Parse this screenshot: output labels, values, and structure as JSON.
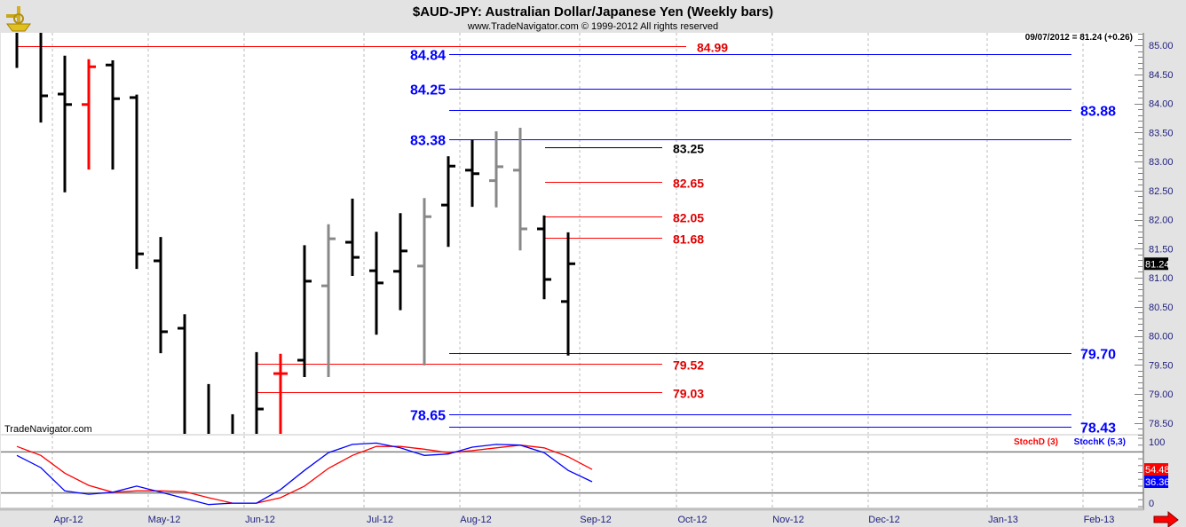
{
  "header": {
    "title": "$AUD-JPY:  Australian Dollar/Japanese Yen  (Weekly bars)",
    "copyright": "www.TradeNavigator.com © 1999-2012 All rights reserved",
    "logo": "sextant-logo",
    "watermark": "TradeNavigator.com",
    "last_quote": "09/07/2012 = 81.24 (+0.26)"
  },
  "colors": {
    "up_bar": "#000000",
    "down_bar": "#888888",
    "red_bar": "#ff0000",
    "resistance": "#ff0000",
    "support": "#0000ff",
    "stoch_d": "#ff0000",
    "stoch_k": "#0000ff"
  },
  "chart_data": [
    {
      "type": "ohlc",
      "title": "$AUD-JPY:  Australian Dollar/Japanese Yen  (Weekly bars)",
      "ylim": [
        78.3,
        85.2
      ],
      "y_ticks": [
        "85.00",
        "84.50",
        "84.00",
        "83.50",
        "83.00",
        "82.50",
        "82.00",
        "81.50",
        "81.00",
        "80.50",
        "80.00",
        "79.50",
        "79.00",
        "78.50"
      ],
      "last_price_label": "81.24",
      "bars": [
        {
          "o": 85.2,
          "h": 85.3,
          "l": 84.61,
          "c": 84.9,
          "color": "black",
          "ticks": false
        },
        {
          "o": 85.2,
          "h": 85.3,
          "l": 83.67,
          "c": 84.13,
          "color": "black",
          "open_hidden": true
        },
        {
          "o": 84.16,
          "h": 84.82,
          "l": 82.47,
          "c": 83.98,
          "color": "black"
        },
        {
          "o": 83.98,
          "h": 84.76,
          "l": 82.86,
          "c": 84.63,
          "color": "red"
        },
        {
          "o": 84.66,
          "h": 84.74,
          "l": 82.86,
          "c": 84.08,
          "color": "black"
        },
        {
          "o": 84.1,
          "h": 84.15,
          "l": 81.15,
          "c": 81.41,
          "color": "black"
        },
        {
          "o": 81.29,
          "h": 81.7,
          "l": 79.7,
          "c": 80.07,
          "color": "black"
        },
        {
          "o": 80.13,
          "h": 80.37,
          "l": 78.0,
          "c": 78.0,
          "color": "black",
          "close_hidden": true
        },
        {
          "o": 78.0,
          "h": 79.17,
          "l": 78.0,
          "c": 78.0,
          "color": "black",
          "ticks": false
        },
        {
          "o": 78.0,
          "h": 78.65,
          "l": 78.0,
          "c": 78.0,
          "color": "black",
          "ticks": false
        },
        {
          "o": 78.0,
          "h": 79.72,
          "l": 78.0,
          "c": 78.74,
          "color": "black",
          "open_hidden": true
        },
        {
          "o": 79.35,
          "h": 79.69,
          "l": 78.0,
          "c": 79.35,
          "color": "red"
        },
        {
          "o": 79.58,
          "h": 81.56,
          "l": 79.29,
          "c": 80.94,
          "color": "black"
        },
        {
          "o": 80.86,
          "h": 81.92,
          "l": 79.29,
          "c": 81.67,
          "color": "grey"
        },
        {
          "o": 81.61,
          "h": 82.36,
          "l": 81.03,
          "c": 81.35,
          "color": "black"
        },
        {
          "o": 81.12,
          "h": 81.79,
          "l": 80.02,
          "c": 80.91,
          "color": "black"
        },
        {
          "o": 81.11,
          "h": 82.11,
          "l": 80.44,
          "c": 81.46,
          "color": "black"
        },
        {
          "o": 81.2,
          "h": 82.37,
          "l": 79.49,
          "c": 82.05,
          "color": "grey"
        },
        {
          "o": 82.25,
          "h": 83.09,
          "l": 81.53,
          "c": 82.92,
          "color": "black"
        },
        {
          "o": 82.85,
          "h": 83.37,
          "l": 82.22,
          "c": 82.79,
          "color": "black"
        },
        {
          "o": 82.67,
          "h": 83.52,
          "l": 82.21,
          "c": 82.91,
          "color": "grey"
        },
        {
          "o": 82.85,
          "h": 83.58,
          "l": 81.47,
          "c": 81.84,
          "color": "grey"
        },
        {
          "o": 81.84,
          "h": 82.07,
          "l": 80.63,
          "c": 80.97,
          "color": "black"
        },
        {
          "o": 80.59,
          "h": 81.78,
          "l": 79.66,
          "c": 81.24,
          "color": "black"
        }
      ],
      "levels": [
        {
          "value": "84.99",
          "kind": "resistance",
          "start_bar": 0,
          "label_side": "mid"
        },
        {
          "value": "84.84",
          "kind": "support",
          "start_bar": 18,
          "label_side": "left"
        },
        {
          "value": "84.25",
          "kind": "support",
          "start_bar": 18,
          "label_side": "left"
        },
        {
          "value": "83.88",
          "kind": "support",
          "start_bar": 18,
          "label_side": "right"
        },
        {
          "value": "83.38",
          "kind": "support",
          "start_bar": 18,
          "label_side": "left"
        },
        {
          "value": "83.25",
          "kind": "black",
          "start_bar": 22,
          "label_side": "mid"
        },
        {
          "value": "82.65",
          "kind": "resistance",
          "start_bar": 22,
          "label_side": "mid"
        },
        {
          "value": "82.05",
          "kind": "resistance",
          "start_bar": 22,
          "label_side": "mid"
        },
        {
          "value": "81.68",
          "kind": "resistance",
          "start_bar": 22,
          "label_side": "mid"
        },
        {
          "value": "79.70",
          "kind": "support",
          "start_bar": 18,
          "label_side": "right"
        },
        {
          "value": "79.52",
          "kind": "resistance",
          "start_bar": 10,
          "label_side": "mid"
        },
        {
          "value": "79.03",
          "kind": "resistance",
          "start_bar": 10,
          "label_side": "mid"
        },
        {
          "value": "78.65",
          "kind": "support",
          "start_bar": 18,
          "label_side": "left"
        },
        {
          "value": "78.43",
          "kind": "support",
          "start_bar": 18,
          "label_side": "right"
        }
      ],
      "x_ticks": [
        "Apr-12",
        "May-12",
        "Jun-12",
        "Jul-12",
        "Aug-12",
        "Sep-12",
        "Oct-12",
        "Nov-12",
        "Dec-12",
        "Jan-13",
        "Feb-13"
      ]
    },
    {
      "type": "line",
      "ylim": [
        0,
        100
      ],
      "y_ticks": [
        "100",
        "0"
      ],
      "reference_lines": [
        80,
        20
      ],
      "series": [
        {
          "name": "StochD (3)",
          "color": "#ff0000",
          "last_label": "54.48",
          "values": [
            88,
            75,
            49,
            31,
            21,
            23,
            23,
            22,
            13,
            5,
            5,
            13,
            30,
            56,
            75,
            88,
            88,
            84,
            79,
            82,
            86,
            90,
            86,
            73,
            54.48
          ]
        },
        {
          "name": "StochK (5,3)",
          "color": "#0000ff",
          "last_label": "36.36",
          "values": [
            75,
            57,
            23,
            18,
            21,
            30,
            21,
            12,
            3,
            5,
            5,
            25,
            53,
            79,
            91,
            93,
            86,
            75,
            77,
            87,
            91,
            90,
            79,
            53,
            36.36
          ]
        }
      ]
    }
  ]
}
